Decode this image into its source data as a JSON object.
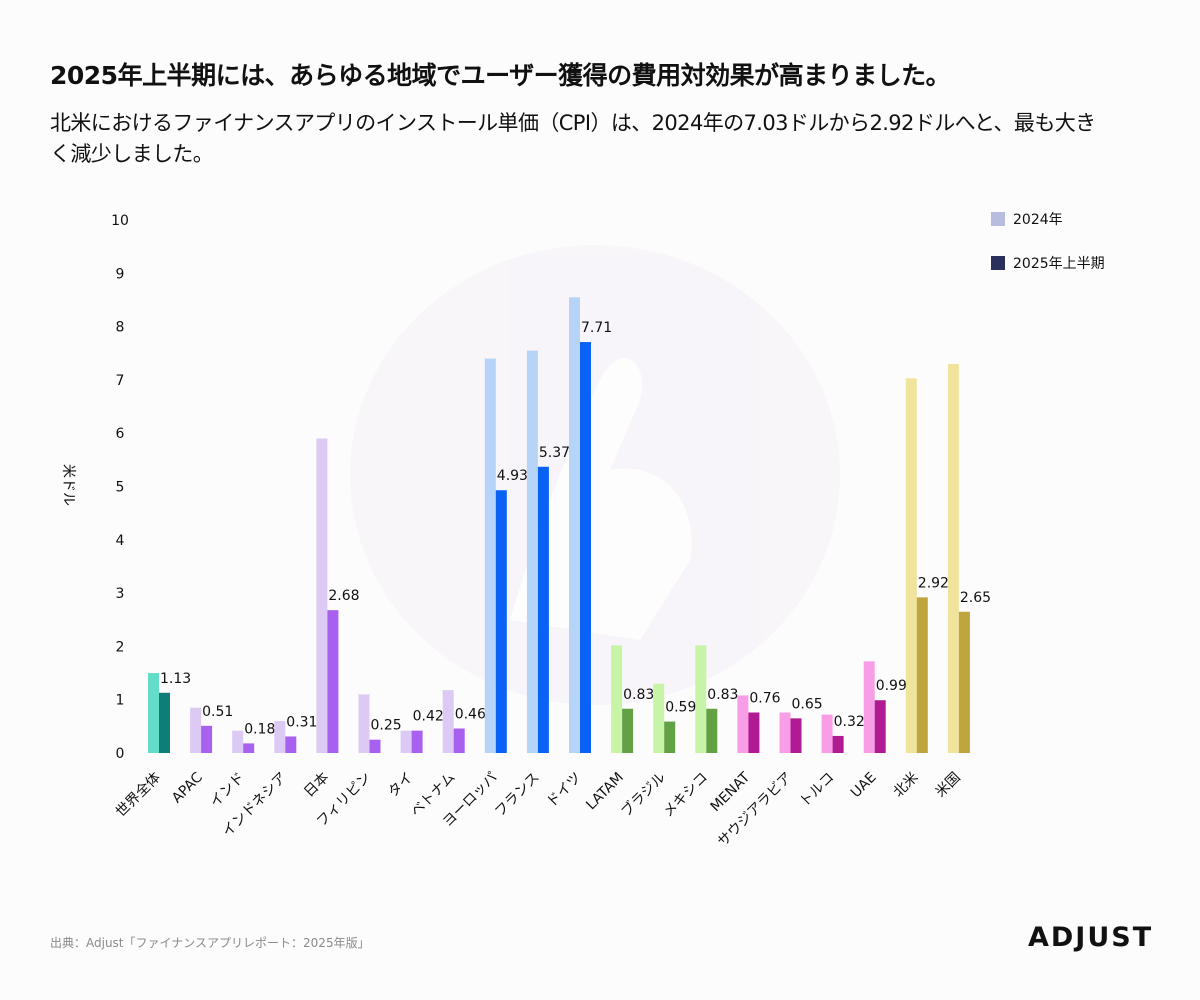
{
  "header": {
    "title": "2025年上半期には、あらゆる地域でユーザー獲得の費用対効果が高まりました。",
    "subtitle": "北米におけるファイナンスアプリのインストール単価（CPI）は、2024年の7.03ドルから2.92ドルへと、最も大きく減少しました。"
  },
  "footer": {
    "source": "出典：Adjust「ファイナンスアプリレポート：2025年版」",
    "logo": "ADJUST"
  },
  "chart_data": {
    "type": "bar",
    "ylabel": "米ドル",
    "xlabel": "",
    "ylim": [
      0,
      10
    ],
    "yticks": [
      0,
      1,
      2,
      3,
      4,
      5,
      6,
      7,
      8,
      9,
      10
    ],
    "legend_position": "top-right",
    "legend": [
      {
        "name": "2024年",
        "color": "#b8bde0"
      },
      {
        "name": "2025年上半期",
        "color": "#2b2f5c"
      }
    ],
    "categories": [
      "世界全体",
      "APAC",
      "インド",
      "インドネシア",
      "日本",
      "フィリピン",
      "タイ",
      "ベトナム",
      "ヨーロッパ",
      "フランス",
      "ドイツ",
      "LATAM",
      "ブラジル",
      "メキシコ",
      "MENAT",
      "サウジアラビア",
      "トルコ",
      "UAE",
      "北米",
      "米国"
    ],
    "series": [
      {
        "name": "2024年",
        "values": [
          1.5,
          0.85,
          0.42,
          0.6,
          5.9,
          1.1,
          0.42,
          1.18,
          7.4,
          7.55,
          8.55,
          2.02,
          1.3,
          2.02,
          1.08,
          0.76,
          0.72,
          1.72,
          7.03,
          7.3
        ]
      },
      {
        "name": "2025年上半期",
        "values": [
          1.13,
          0.51,
          0.18,
          0.31,
          2.68,
          0.25,
          0.42,
          0.46,
          4.93,
          5.37,
          7.71,
          0.83,
          0.59,
          0.83,
          0.76,
          0.65,
          0.32,
          0.99,
          2.92,
          2.65
        ]
      }
    ],
    "data_labels": [
      "1.13",
      "0.51",
      "0.18",
      "0.31",
      "2.68",
      "0.25",
      "0.42",
      "0.46",
      "4.93",
      "5.37",
      "7.71",
      "0.83",
      "0.59",
      "0.83",
      "0.76",
      "0.65",
      "0.32",
      "0.99",
      "2.92",
      "2.65"
    ],
    "colors_2024": [
      "#63dcc8",
      "#dccaf5",
      "#dccaf5",
      "#dccaf5",
      "#dccaf5",
      "#dccaf5",
      "#dccaf5",
      "#dccaf5",
      "#b5d4f7",
      "#b5d4f7",
      "#b5d4f7",
      "#c8f4a8",
      "#c8f4a8",
      "#c8f4a8",
      "#f79ee6",
      "#f79ee6",
      "#f79ee6",
      "#f79ee6",
      "#f0e39c",
      "#f0e39c"
    ],
    "colors_2025": [
      "#0e7f78",
      "#a860ef",
      "#a860ef",
      "#a860ef",
      "#a860ef",
      "#a860ef",
      "#a860ef",
      "#a860ef",
      "#0a62f5",
      "#0a62f5",
      "#0a62f5",
      "#62a244",
      "#62a244",
      "#62a244",
      "#b01a92",
      "#b01a92",
      "#b01a92",
      "#b01a92",
      "#c0a43e",
      "#c0a43e"
    ]
  }
}
